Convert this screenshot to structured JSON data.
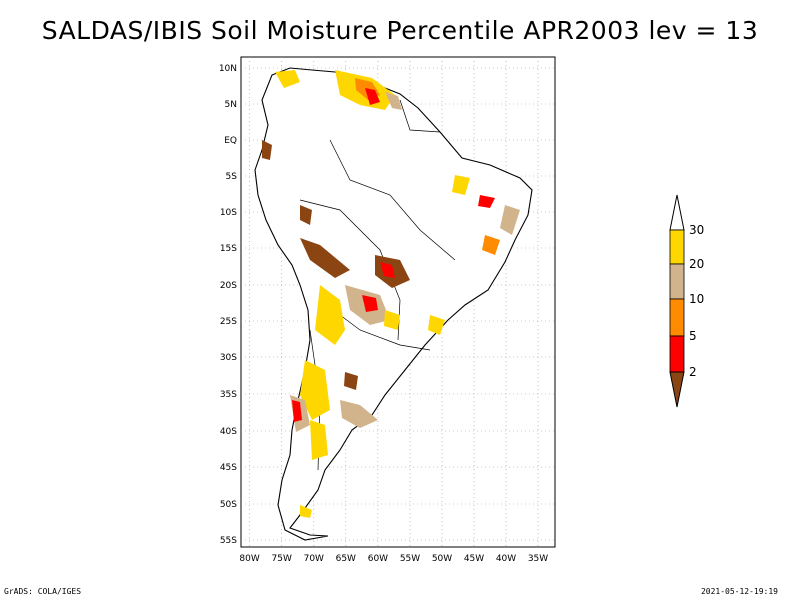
{
  "title": "SALDAS/IBIS Soil Moisture Percentile APR2003 lev = 13",
  "footer": {
    "left": "GrADS: COLA/IGES",
    "right": "2021-05-12-19:19"
  },
  "map": {
    "lon_ticks": [
      "80W",
      "75W",
      "70W",
      "65W",
      "60W",
      "55W",
      "50W",
      "45W",
      "40W",
      "35W"
    ],
    "lat_ticks": [
      "10N",
      "5N",
      "EQ",
      "5S",
      "10S",
      "15S",
      "20S",
      "25S",
      "30S",
      "35S",
      "40S",
      "45S",
      "50S",
      "55S"
    ],
    "lon_range": [
      -81,
      -32
    ],
    "lat_range": [
      -56,
      12
    ],
    "grid": true,
    "grid_style": "dotted"
  },
  "colorbar": {
    "placement": "right",
    "levels": [
      "2",
      "5",
      "10",
      "20",
      "30"
    ],
    "colors": {
      "below_2": "#8B4513",
      "2_5": "#FF0000",
      "5_10": "#FF8C00",
      "10_20": "#D2B48C",
      "20_30": "#FFD700",
      "above_30": "#FFFFFF"
    }
  }
}
